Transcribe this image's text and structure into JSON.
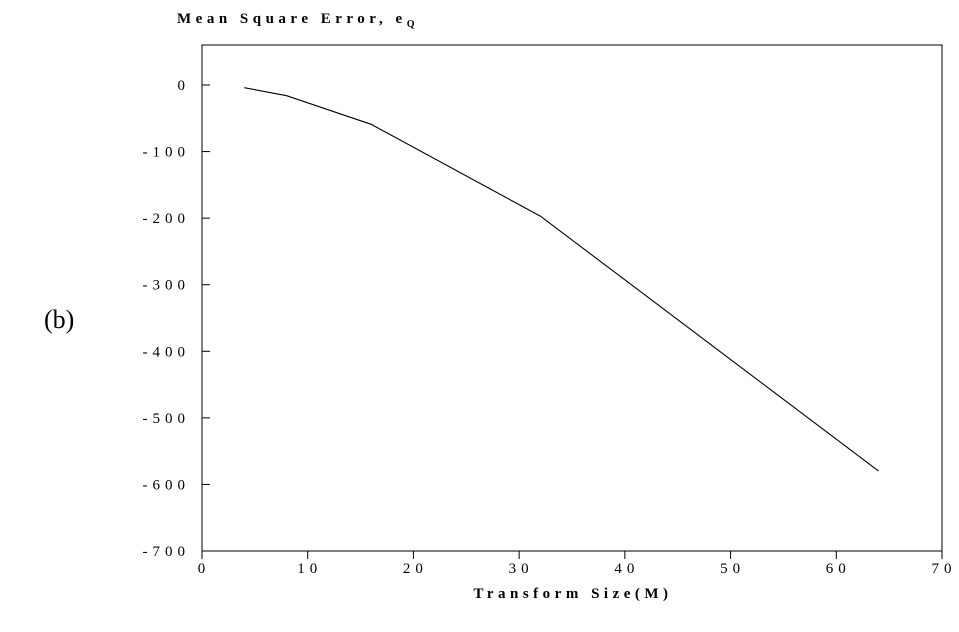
{
  "panel_label": "(b)",
  "chart_data": {
    "type": "line",
    "title": "",
    "ylabel_main": "Mean Square Error, e",
    "ylabel_sub": "Q",
    "xlabel": "Transform Size(M)",
    "xlim": [
      0,
      70
    ],
    "ylim": [
      -700,
      100
    ],
    "x_ticks": [
      0,
      10,
      20,
      30,
      40,
      50,
      60,
      70
    ],
    "x_tick_labels": [
      "0",
      "10",
      "20",
      "30",
      "40",
      "50",
      "60",
      "70"
    ],
    "y_ticks": [
      0,
      -100,
      -200,
      -300,
      -400,
      -500,
      -600,
      -700
    ],
    "y_tick_labels": [
      "0",
      "-100",
      "-200",
      "-300",
      "-400",
      "-500",
      "-600",
      "-700"
    ],
    "grid": false,
    "series": [
      {
        "x": [
          4,
          8,
          16,
          32,
          64
        ],
        "y": [
          -4,
          -16,
          -59,
          -197,
          -580
        ],
        "color": "#000000"
      }
    ]
  }
}
